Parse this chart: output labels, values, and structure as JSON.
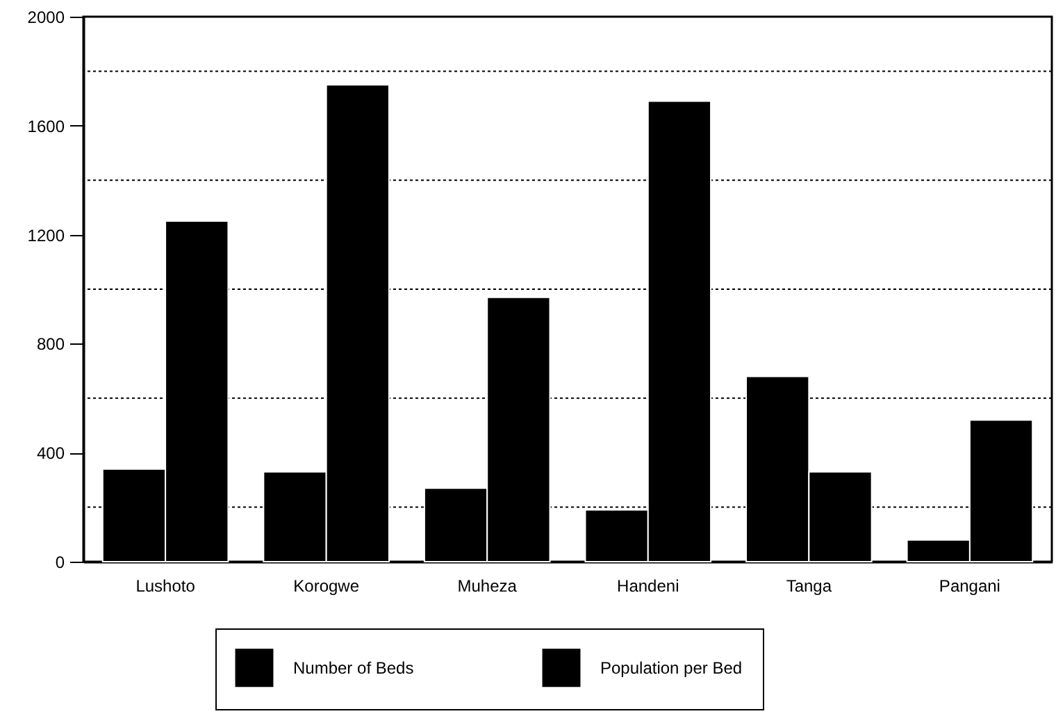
{
  "chart_data": {
    "type": "bar",
    "categories": [
      "Lushoto",
      "Korogwe",
      "Muheza",
      "Handeni",
      "Tanga",
      "Pangani"
    ],
    "series": [
      {
        "name": "Number of Beds",
        "color": "#000000",
        "values": [
          340,
          330,
          270,
          190,
          680,
          80
        ]
      },
      {
        "name": "Population per Bed",
        "color": "#000000",
        "values": [
          1250,
          1750,
          970,
          1690,
          330,
          520
        ]
      }
    ],
    "ylim": [
      0,
      2000
    ],
    "yticks": [
      0,
      {
        "value": 200,
        "label": null
      },
      400,
      {
        "value": 600,
        "label": null
      },
      800,
      {
        "value": 1000,
        "label": null
      },
      1200,
      {
        "value": 1400,
        "label": null
      },
      1600,
      {
        "value": 1800,
        "label": null
      },
      2000
    ],
    "grid": true,
    "legend": "bottom"
  }
}
